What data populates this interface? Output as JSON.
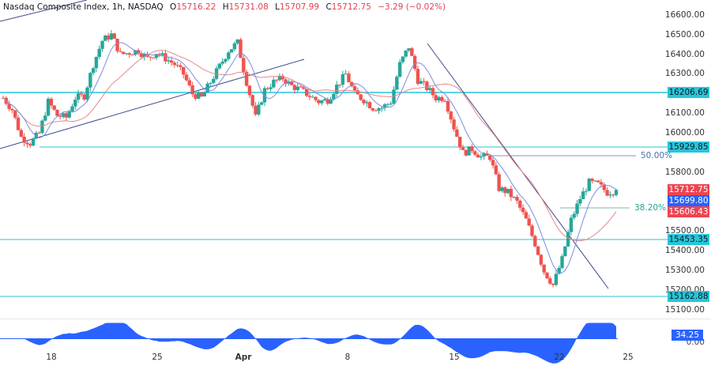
{
  "header": {
    "symbol": "Nasdaq Composite Index, 1h, NASDAQ",
    "open_label": "O",
    "open": "15716.22",
    "high_label": "H",
    "high": "15731.08",
    "low_label": "L",
    "low": "15707.99",
    "close_label": "C",
    "close": "15712.75",
    "change": "−3.29 (−0.02%)"
  },
  "colors": {
    "up": "#26a69a",
    "down": "#ef5350",
    "level_line": "#26c6da",
    "trendline": "#3f4b8c",
    "ma_fast": "#7b8ee0",
    "ma_slow": "#e8878a",
    "oscillator": "#2962ff",
    "fib_50": "#4a6fb0",
    "fib_382": "#26a69a"
  },
  "price_axis": {
    "ticks": [
      "16600.00",
      "16500.00",
      "16400.00",
      "16300.00",
      "16100.00",
      "16000.00",
      "15800.00",
      "15500.00",
      "15400.00",
      "15300.00",
      "15200.00",
      "15100.00"
    ]
  },
  "level_tags": {
    "r1": "16206.69",
    "r2": "15929.85",
    "s1": "15453.35",
    "s2": "15162.88"
  },
  "price_tags": {
    "last": "15712.75",
    "ma_fast": "15699.80",
    "ma_slow": "15606.43"
  },
  "fib": {
    "f50": "50.00%",
    "f382": "38.20%"
  },
  "oscillator": {
    "value": "34.25",
    "zero_label": "0.00"
  },
  "time_axis": {
    "labels": [
      {
        "text": "18",
        "x": 65,
        "bold": false
      },
      {
        "text": "25",
        "x": 199,
        "bold": false
      },
      {
        "text": "Apr",
        "x": 308,
        "bold": true
      },
      {
        "text": "8",
        "x": 440,
        "bold": false
      },
      {
        "text": "15",
        "x": 575,
        "bold": false
      },
      {
        "text": "22",
        "x": 708,
        "bold": false
      },
      {
        "text": "25",
        "x": 795,
        "bold": false
      }
    ]
  },
  "chart_data": {
    "type": "candlestick",
    "title": "Nasdaq Composite Index, 1h, NASDAQ",
    "xlabel": "",
    "ylabel": "",
    "ylim": [
      15100,
      16600
    ],
    "x_ticks": [
      "18",
      "25",
      "Apr",
      "8",
      "15",
      "22",
      "25"
    ],
    "horizontal_levels": [
      16206.69,
      15929.85,
      15453.35,
      15162.88
    ],
    "fibonacci": [
      {
        "label": "50.00%",
        "price": 15880
      },
      {
        "label": "38.20%",
        "price": 15600
      }
    ],
    "last_close": 15712.75,
    "moving_averages": [
      {
        "name": "fast MA",
        "value": 15699.8
      },
      {
        "name": "slow MA",
        "value": 15606.43
      }
    ],
    "oscillator_last": 34.25,
    "close_path": [
      16180,
      16120,
      15980,
      15950,
      16000,
      16160,
      16090,
      16080,
      16180,
      16190,
      16350,
      16470,
      16500,
      16400,
      16410,
      16420,
      16380,
      16410,
      16380,
      16350,
      16300,
      16200,
      16180,
      16260,
      16340,
      16420,
      16460,
      16260,
      16080,
      16220,
      16260,
      16280,
      16240,
      16220,
      16190,
      16160,
      16170,
      16240,
      16300,
      16200,
      16170,
      16130,
      16130,
      16160,
      16350,
      16440,
      16270,
      16230,
      16180,
      16180,
      16030,
      15900,
      15920,
      15880,
      15880,
      15720,
      15700,
      15650,
      15560,
      15440,
      15300,
      15230,
      15360,
      15560,
      15670,
      15750,
      15740,
      15700,
      15710
    ]
  }
}
